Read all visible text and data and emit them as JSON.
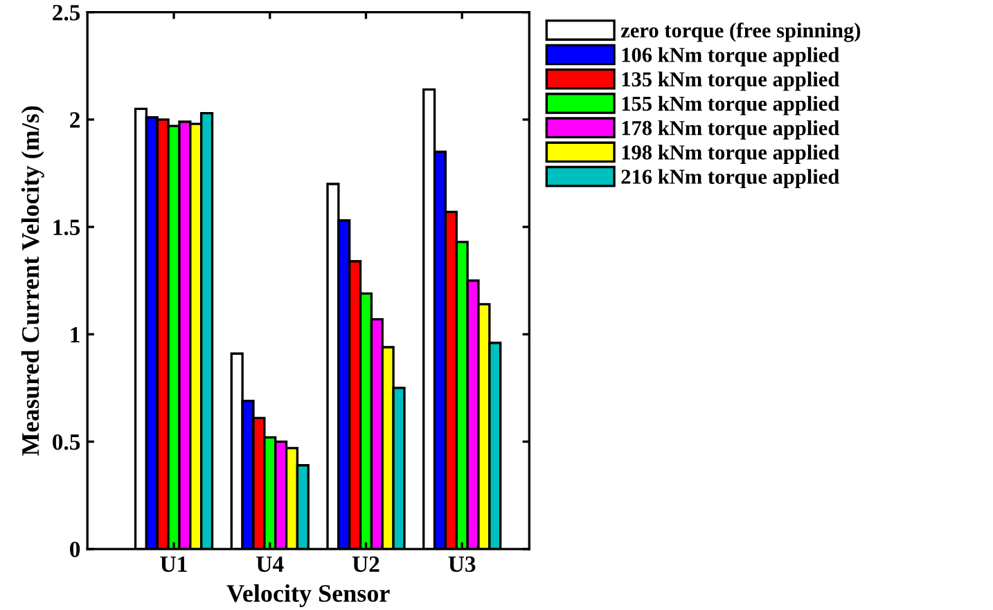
{
  "chart_data": {
    "type": "bar",
    "xlabel": "Velocity Sensor",
    "ylabel": "Measured Current Velocity (m/s)",
    "categories": [
      "U1",
      "U4",
      "U2",
      "U3"
    ],
    "series": [
      {
        "name": "zero torque (free spinning)",
        "color": "#ffffff",
        "values": [
          2.05,
          0.91,
          1.7,
          2.14
        ]
      },
      {
        "name": "106 kNm torque applied",
        "color": "#0000ff",
        "values": [
          2.01,
          0.69,
          1.53,
          1.85
        ]
      },
      {
        "name": "135 kNm torque applied",
        "color": "#ff0000",
        "values": [
          2.0,
          0.61,
          1.34,
          1.57
        ]
      },
      {
        "name": "155 kNm torque applied",
        "color": "#00ff00",
        "values": [
          1.97,
          0.52,
          1.19,
          1.43
        ]
      },
      {
        "name": "178 kNm torque applied",
        "color": "#ff00ff",
        "values": [
          1.99,
          0.5,
          1.07,
          1.25
        ]
      },
      {
        "name": "198 kNm torque applied",
        "color": "#ffff00",
        "values": [
          1.98,
          0.47,
          0.94,
          1.14
        ]
      },
      {
        "name": "216 kNm torque applied",
        "color": "#00bfbf",
        "values": [
          2.03,
          0.39,
          0.75,
          0.96
        ]
      }
    ],
    "ylim": [
      0,
      2.5
    ],
    "yticks": [
      0,
      0.5,
      1,
      1.5,
      2,
      2.5
    ],
    "grid": false,
    "legend": "top right"
  }
}
